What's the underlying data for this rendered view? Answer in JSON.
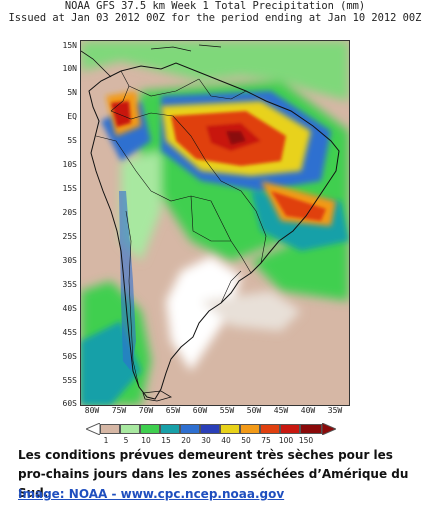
{
  "title": {
    "line1": "NOAA GFS 37.5 km Week 1 Total Precipitation (mm)",
    "line2": "Issued at Jan 03 2012 00Z for the period ending at Jan 10 2012 00Z"
  },
  "axes": {
    "lat_labels": [
      "15N",
      "10N",
      "5N",
      "EQ",
      "5S",
      "10S",
      "15S",
      "20S",
      "25S",
      "30S",
      "35S",
      "40S",
      "45S",
      "50S",
      "55S",
      "60S"
    ],
    "lon_labels": [
      "80W",
      "75W",
      "70W",
      "65W",
      "60W",
      "55W",
      "50W",
      "45W",
      "40W",
      "35W"
    ]
  },
  "legend": {
    "labels": [
      "1",
      "5",
      "10",
      "15",
      "20",
      "30",
      "40",
      "50",
      "75",
      "100",
      "150"
    ],
    "colors": [
      "#ffffff",
      "#d6b7a5",
      "#a8e8a0",
      "#3fcf4f",
      "#18a0a8",
      "#2e6fd0",
      "#2a3fb8",
      "#e8d21a",
      "#f29a18",
      "#e04010",
      "#c81810",
      "#8a0a0a"
    ]
  },
  "caption": "Les conditions prévues demeurent très sèches pour les pro-chains jours dans les zones asséchées d’Amérique du Sud.",
  "credit": "Image: NOAA - www.cpc.ncep.noaa.gov"
}
